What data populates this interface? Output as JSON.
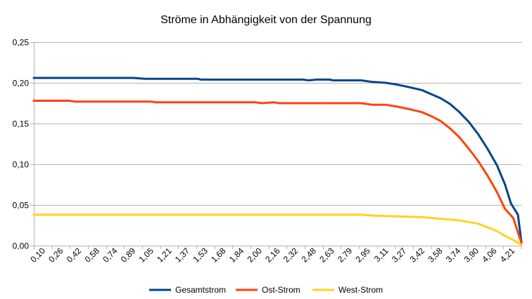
{
  "chart_data": {
    "type": "line",
    "title": "Ströme in Abhängigkeit von der Spannung",
    "xlabel": "",
    "ylabel": "",
    "ylim": [
      0,
      0.25
    ],
    "y_ticks": [
      "0,00",
      "0,05",
      "0,10",
      "0,15",
      "0,20",
      "0,25"
    ],
    "x_tick_labels": [
      "0,10",
      "0,26",
      "0,42",
      "0,58",
      "0,74",
      "0,89",
      "1,05",
      "1,21",
      "1,37",
      "1,53",
      "1,68",
      "1,84",
      "2,00",
      "2,16",
      "2,32",
      "2,48",
      "2,63",
      "2,79",
      "2,95",
      "3,11",
      "3,27",
      "3,42",
      "3,58",
      "3,74",
      "3,90",
      "4,06",
      "4,21"
    ],
    "grid": "horizontal",
    "legend_position": "bottom",
    "colors": {
      "gesamt": "#004586",
      "ost": "#ff420e",
      "west": "#ffd320",
      "grid": "#b3b3b3",
      "axis": "#b3b3b3"
    },
    "series": [
      {
        "name": "Gesamtstrom",
        "color": "#004586",
        "points": [
          [
            0.1,
            0.206
          ],
          [
            0.5,
            0.206
          ],
          [
            0.95,
            0.206
          ],
          [
            1.05,
            0.205
          ],
          [
            1.5,
            0.205
          ],
          [
            1.53,
            0.204
          ],
          [
            2.0,
            0.204
          ],
          [
            2.4,
            0.204
          ],
          [
            2.45,
            0.203
          ],
          [
            2.52,
            0.204
          ],
          [
            2.63,
            0.204
          ],
          [
            2.66,
            0.203
          ],
          [
            2.9,
            0.203
          ],
          [
            2.95,
            0.202
          ],
          [
            3.0,
            0.201
          ],
          [
            3.11,
            0.2
          ],
          [
            3.2,
            0.198
          ],
          [
            3.3,
            0.195
          ],
          [
            3.42,
            0.191
          ],
          [
            3.5,
            0.186
          ],
          [
            3.58,
            0.181
          ],
          [
            3.66,
            0.174
          ],
          [
            3.74,
            0.164
          ],
          [
            3.82,
            0.152
          ],
          [
            3.9,
            0.137
          ],
          [
            3.98,
            0.119
          ],
          [
            4.06,
            0.099
          ],
          [
            4.13,
            0.075
          ],
          [
            4.18,
            0.052
          ],
          [
            4.24,
            0.038
          ],
          [
            4.27,
            0.004
          ]
        ]
      },
      {
        "name": "Ost-Strom",
        "color": "#ff420e",
        "points": [
          [
            0.1,
            0.178
          ],
          [
            0.4,
            0.178
          ],
          [
            0.45,
            0.177
          ],
          [
            1.1,
            0.177
          ],
          [
            1.15,
            0.176
          ],
          [
            2.0,
            0.176
          ],
          [
            2.05,
            0.175
          ],
          [
            2.15,
            0.176
          ],
          [
            2.2,
            0.175
          ],
          [
            2.9,
            0.175
          ],
          [
            2.95,
            0.174
          ],
          [
            3.0,
            0.173
          ],
          [
            3.11,
            0.173
          ],
          [
            3.2,
            0.171
          ],
          [
            3.3,
            0.168
          ],
          [
            3.42,
            0.164
          ],
          [
            3.5,
            0.159
          ],
          [
            3.58,
            0.153
          ],
          [
            3.66,
            0.144
          ],
          [
            3.74,
            0.133
          ],
          [
            3.82,
            0.119
          ],
          [
            3.9,
            0.104
          ],
          [
            3.98,
            0.086
          ],
          [
            4.06,
            0.066
          ],
          [
            4.13,
            0.045
          ],
          [
            4.2,
            0.034
          ],
          [
            4.27,
            0.003
          ]
        ]
      },
      {
        "name": "West-Strom",
        "color": "#ffd320",
        "points": [
          [
            0.1,
            0.038
          ],
          [
            1.5,
            0.038
          ],
          [
            2.9,
            0.038
          ],
          [
            3.0,
            0.037
          ],
          [
            3.2,
            0.036
          ],
          [
            3.42,
            0.035
          ],
          [
            3.58,
            0.033
          ],
          [
            3.74,
            0.031
          ],
          [
            3.9,
            0.027
          ],
          [
            4.06,
            0.018
          ],
          [
            4.13,
            0.012
          ],
          [
            4.2,
            0.007
          ],
          [
            4.27,
            0.001
          ]
        ]
      }
    ]
  }
}
